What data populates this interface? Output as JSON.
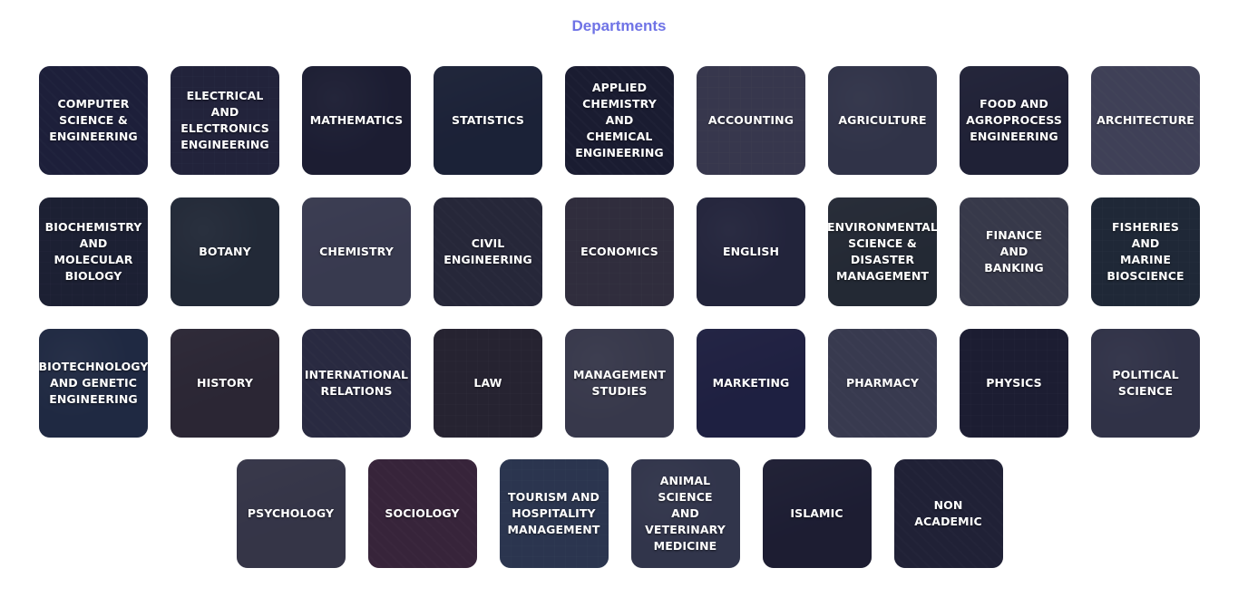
{
  "page": {
    "title": "Departments"
  },
  "rows": [
    [
      {
        "label": "COMPUTER\nSCIENCE &\nENGINEERING",
        "bg": "#1f2540",
        "icon": "circuit-board"
      },
      {
        "label": "ELECTRICAL\nAND\nELECTRONICS\nENGINEERING",
        "bg": "#2a2e44",
        "icon": "circuit"
      },
      {
        "label": "MATHEMATICS",
        "bg": "#1d2030",
        "icon": "formulas"
      },
      {
        "label": "STATISTICS",
        "bg": "#1c2a3a",
        "icon": "stock-chart"
      },
      {
        "label": "APPLIED\nCHEMISTRY\nAND\nCHEMICAL\nENGINEERING",
        "bg": "#1a1e2e",
        "icon": "chemical-structure"
      },
      {
        "label": "ACCOUNTING",
        "bg": "#5a5a6a",
        "icon": "laptop-desk"
      },
      {
        "label": "AGRICULTURE",
        "bg": "#4a5060",
        "icon": "tractor-field"
      },
      {
        "label": "FOOD AND\nAGROPROCESS\nENGINEERING",
        "bg": "#252838",
        "icon": "food"
      },
      {
        "label": "ARCHITECTURE",
        "bg": "#6a6e80",
        "icon": "building-sketch"
      }
    ],
    [
      {
        "label": "BIOCHEMISTRY\nAND\nMOLECULAR\nBIOLOGY",
        "bg": "#1e2632",
        "icon": "molecule"
      },
      {
        "label": "BOTANY",
        "bg": "#2a3a3a",
        "icon": "leaves"
      },
      {
        "label": "CHEMISTRY",
        "bg": "#5c6070",
        "icon": "lab-flasks"
      },
      {
        "label": "CIVIL\nENGINEERING",
        "bg": "#33363f",
        "icon": "colosseum"
      },
      {
        "label": "ECONOMICS",
        "bg": "#4a4448",
        "icon": "coins"
      },
      {
        "label": "ENGLISH",
        "bg": "#2c2f44",
        "icon": "english-word"
      },
      {
        "label": "ENVIRONMENTAL\nSCIENCE &\nDISASTER\nMANAGEMENT",
        "bg": "#2e3a34",
        "icon": "landscape"
      },
      {
        "label": "FINANCE\nAND\nBANKING",
        "bg": "#5a5e64",
        "icon": "money-jar"
      },
      {
        "label": "FISHERIES\nAND\nMARINE\nBIOSCIENCE",
        "bg": "#25393a",
        "icon": "fish"
      }
    ],
    [
      {
        "label": "BIOTECHNOLOGY\nAND GENETIC\nENGINEERING",
        "bg": "#243a52",
        "icon": "dna"
      },
      {
        "label": "HISTORY",
        "bg": "#3e3434",
        "icon": "ships"
      },
      {
        "label": "INTERNATIONAL\nRELATIONS",
        "bg": "#3b3d50",
        "icon": "world-map"
      },
      {
        "label": "LAW",
        "bg": "#342e2e",
        "icon": "courtroom"
      },
      {
        "label": "MANAGEMENT\nSTUDIES",
        "bg": "#5a5c66",
        "icon": "whiteboard"
      },
      {
        "label": "MARKETING",
        "bg": "#232650",
        "icon": "bull-bear"
      },
      {
        "label": "PHARMACY",
        "bg": "#5c6070",
        "icon": "pill-bottle"
      },
      {
        "label": "PHYSICS",
        "bg": "#1d2030",
        "icon": "equations"
      },
      {
        "label": "POLITICAL\nSCIENCE",
        "bg": "#4a4e5e",
        "icon": "capitol"
      }
    ],
    [
      {
        "label": "PSYCHOLOGY",
        "bg": "#54545e",
        "icon": "head-birds"
      },
      {
        "label": "SOCIOLOGY",
        "bg": "#5a3040",
        "icon": "peace-hand"
      },
      {
        "label": "TOURISM AND\nHOSPITALITY\nMANAGEMENT",
        "bg": "#3e5670",
        "icon": "beach"
      },
      {
        "label": "ANIMAL\nSCIENCE\nAND\nVETERINARY\nMEDICINE",
        "bg": "#4c5466",
        "icon": "veterinarian"
      },
      {
        "label": "ISLAMIC",
        "bg": "#1f2030",
        "icon": "calligraphy"
      },
      {
        "label": "NON\nACADEMIC",
        "bg": "#262838",
        "icon": "puzzle"
      }
    ]
  ]
}
